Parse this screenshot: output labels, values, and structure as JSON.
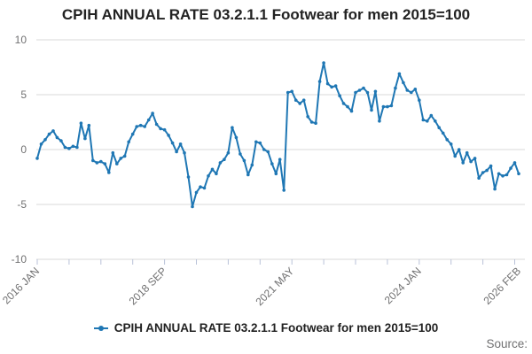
{
  "title": "CPIH ANNUAL RATE 03.2.1.1 Footwear for men 2015=100",
  "source_label": "Source:",
  "legend": {
    "position": "bottom",
    "items": [
      {
        "label": "CPIH ANNUAL RATE 03.2.1.1 Footwear for men 2015=100",
        "marker": "line-dot",
        "color": "#1f77b4"
      }
    ]
  },
  "colors": {
    "line": "#1f77b4",
    "grid": "#d9d9d9",
    "tick": "#b9c2d8",
    "axis_text": "#707071",
    "title_text": "#222222",
    "background": "#ffffff"
  },
  "y_axis": {
    "ticks": [
      10,
      5,
      0,
      -5,
      -10
    ],
    "min": -10,
    "max": 10
  },
  "x_axis": {
    "minor_tick_every_months": 8,
    "labels": [
      {
        "text": "2016 JAN",
        "month_index": 0
      },
      {
        "text": "2018 SEP",
        "month_index": 32
      },
      {
        "text": "2021 MAY",
        "month_index": 64
      },
      {
        "text": "2024 JAN",
        "month_index": 96
      },
      {
        "text": "2026 FEB",
        "month_index": 121
      }
    ]
  },
  "chart_data": {
    "type": "line",
    "title": "CPIH ANNUAL RATE 03.2.1.1 Footwear for men 2015=100",
    "series_name": "CPIH ANNUAL RATE 03.2.1.1 Footwear for men 2015=100",
    "unit": "percent annual rate",
    "frequency": "monthly",
    "start_month": "2016-01",
    "end_month": "2026-02",
    "ylim": [
      -10,
      10
    ],
    "grid": true,
    "legend_position": "bottom",
    "values": [
      -0.8,
      0.5,
      0.9,
      1.4,
      1.7,
      1.1,
      0.8,
      0.2,
      0.1,
      0.3,
      0.2,
      2.4,
      1.0,
      2.2,
      -1.0,
      -1.2,
      -1.1,
      -1.3,
      -2.1,
      -0.3,
      -1.3,
      -0.8,
      -0.6,
      0.7,
      1.4,
      2.1,
      2.2,
      2.1,
      2.7,
      3.3,
      2.3,
      1.9,
      1.8,
      1.3,
      0.6,
      -0.2,
      0.5,
      -0.3,
      -2.5,
      -5.2,
      -3.9,
      -3.4,
      -3.5,
      -2.4,
      -1.8,
      -2.2,
      -1.2,
      -0.9,
      -0.3,
      2.0,
      1.1,
      -0.4,
      -1.0,
      -2.3,
      -1.4,
      0.7,
      0.6,
      0.0,
      -0.2,
      -1.3,
      -2.2,
      -0.9,
      -3.7,
      5.2,
      5.3,
      4.5,
      4.2,
      4.5,
      3.0,
      2.5,
      2.4,
      6.2,
      7.9,
      6.0,
      5.7,
      5.8,
      4.9,
      4.2,
      3.9,
      3.5,
      5.2,
      5.4,
      5.6,
      5.2,
      3.6,
      5.3,
      2.6,
      3.9,
      3.9,
      4.0,
      5.6,
      6.9,
      6.1,
      5.4,
      5.2,
      5.5,
      4.5,
      2.7,
      2.6,
      3.1,
      2.6,
      2.0,
      1.5,
      0.9,
      0.5,
      -0.6,
      0.0,
      -1.2,
      -0.3,
      -1.1,
      -0.8,
      -2.6,
      -2.1,
      -1.9,
      -1.5,
      -3.6,
      -2.2,
      -2.4,
      -2.3,
      -1.7,
      -1.2,
      -2.2
    ]
  }
}
